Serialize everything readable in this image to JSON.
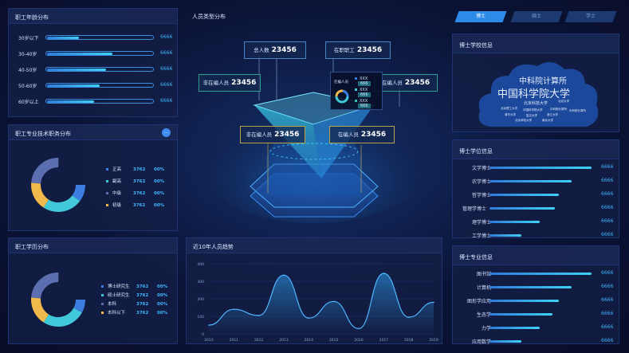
{
  "age": {
    "title": "职工年龄分布",
    "rows": [
      {
        "label": "30岁以下",
        "value": "6666",
        "fraction": 0.3
      },
      {
        "label": "30-40岁",
        "value": "6666",
        "fraction": 0.62
      },
      {
        "label": "40-50岁",
        "value": "6666",
        "fraction": 0.56
      },
      {
        "label": "50-60岁",
        "value": "6666",
        "fraction": 0.5
      },
      {
        "label": "60岁以上",
        "value": "6666",
        "fraction": 0.45
      }
    ]
  },
  "tech": {
    "title": "职工专业技术职务分布",
    "legend": [
      {
        "label": "正高",
        "value": "3762",
        "pct": "00%",
        "color": "#3b7de0"
      },
      {
        "label": "副高",
        "value": "3762",
        "pct": "00%",
        "color": "#41c9d9"
      },
      {
        "label": "中级",
        "value": "3762",
        "pct": "00%",
        "color": "#5b6fb0"
      },
      {
        "label": "初级",
        "value": "3762",
        "pct": "00%",
        "color": "#f1b84b"
      }
    ]
  },
  "edu": {
    "title": "职工学历分布",
    "legend": [
      {
        "label": "博士研究生",
        "value": "3762",
        "pct": "00%",
        "color": "#3b7de0"
      },
      {
        "label": "硕士研究生",
        "value": "3762",
        "pct": "00%",
        "color": "#41c9d9"
      },
      {
        "label": "本科",
        "value": "3762",
        "pct": "00%",
        "color": "#5b6fb0"
      },
      {
        "label": "本科以下",
        "value": "3762",
        "pct": "00%",
        "color": "#f1b84b"
      }
    ]
  },
  "types": {
    "title": "人员类型分布",
    "total": {
      "label": "总人数",
      "value": "23456"
    },
    "onjob": {
      "label": "在职职工",
      "value": "23456"
    },
    "notin1": {
      "label": "非在编人员",
      "value": "23456"
    },
    "inpost1": {
      "label": "在编人员",
      "value": "23456"
    },
    "notin2": {
      "label": "非在编人员",
      "value": "23456"
    },
    "inpost2": {
      "label": "在编人员",
      "value": "23456"
    },
    "popup": {
      "title": "在编人员",
      "rows": [
        {
          "label": "XXX",
          "value": "666"
        },
        {
          "label": "XXX",
          "value": "666"
        },
        {
          "label": "XXX",
          "value": "666"
        }
      ]
    }
  },
  "chart_data": {
    "type": "area",
    "title": "近10年人员趋势",
    "x": [
      "2010",
      "2011",
      "2012",
      "2013",
      "2014",
      "2015",
      "2016",
      "2017",
      "2018",
      "2019"
    ],
    "values": [
      50,
      140,
      105,
      335,
      90,
      185,
      30,
      345,
      95,
      180
    ],
    "yticks": [
      "0",
      "100",
      "200",
      "300",
      "400"
    ],
    "ylim": [
      0,
      400
    ]
  },
  "tabs": [
    {
      "label": "博士",
      "active": true
    },
    {
      "label": "硕士",
      "active": false
    },
    {
      "label": "学士",
      "active": false
    }
  ],
  "school": {
    "title": "博士学校信息",
    "cloud_big1": "中科院计算所",
    "cloud_big2": "中国科学院大学",
    "cloud_mid": "北京科技大学",
    "cloud_small": [
      "北京理工大学",
      "中国科学院大学",
      "中科院计算所",
      "北京大学",
      "清华大学",
      "复旦大学",
      "浙江大学",
      "中科院计算所",
      "北京师范大学",
      "南京大学"
    ]
  },
  "degree": {
    "title": "博士学位信息",
    "rows": [
      {
        "label": "文学博士",
        "value": "6666",
        "fraction": 0.97
      },
      {
        "label": "农学博士",
        "value": "6666",
        "fraction": 0.78
      },
      {
        "label": "哲学博士",
        "value": "6666",
        "fraction": 0.66
      },
      {
        "label": "管理学博士",
        "value": "6666",
        "fraction": 0.62
      },
      {
        "label": "理学博士",
        "value": "6666",
        "fraction": 0.48
      },
      {
        "label": "工学博士",
        "value": "6666",
        "fraction": 0.3
      }
    ]
  },
  "major": {
    "title": "博士专业信息",
    "rows": [
      {
        "label": "图书馆",
        "value": "6666",
        "fraction": 0.97
      },
      {
        "label": "计算机",
        "value": "6666",
        "fraction": 0.78
      },
      {
        "label": "图形学应用",
        "value": "6666",
        "fraction": 0.66
      },
      {
        "label": "生态学",
        "value": "6666",
        "fraction": 0.6
      },
      {
        "label": "力学",
        "value": "6666",
        "fraction": 0.48
      },
      {
        "label": "应用数学",
        "value": "6666",
        "fraction": 0.3
      }
    ]
  }
}
